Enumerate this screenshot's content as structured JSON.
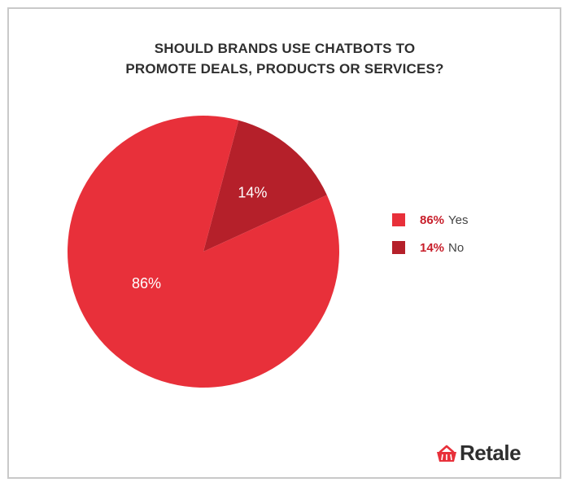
{
  "title_lines": [
    "SHOULD BRANDS USE CHATBOTS TO",
    "PROMOTE DEALS, PRODUCTS OR SERVICES?"
  ],
  "colors": {
    "yes": "#e8303a",
    "no": "#b5202a",
    "legend_pct": "#c81f2b",
    "border": "#c9c9c9"
  },
  "chart_data": {
    "type": "pie",
    "title": "SHOULD BRANDS USE CHATBOTS TO PROMOTE DEALS, PRODUCTS OR SERVICES?",
    "slices": [
      {
        "label": "Yes",
        "value": 86,
        "pct_label": "86%",
        "color": "#e8303a"
      },
      {
        "label": "No",
        "value": 14,
        "pct_label": "14%",
        "color": "#b5202a"
      }
    ],
    "legend_position": "right"
  },
  "legend": [
    {
      "pct": "86%",
      "label": "Yes",
      "color": "#e8303a"
    },
    {
      "pct": "14%",
      "label": "No",
      "color": "#b5202a"
    }
  ],
  "logo": {
    "text": "Retale",
    "icon": "basket-icon"
  }
}
